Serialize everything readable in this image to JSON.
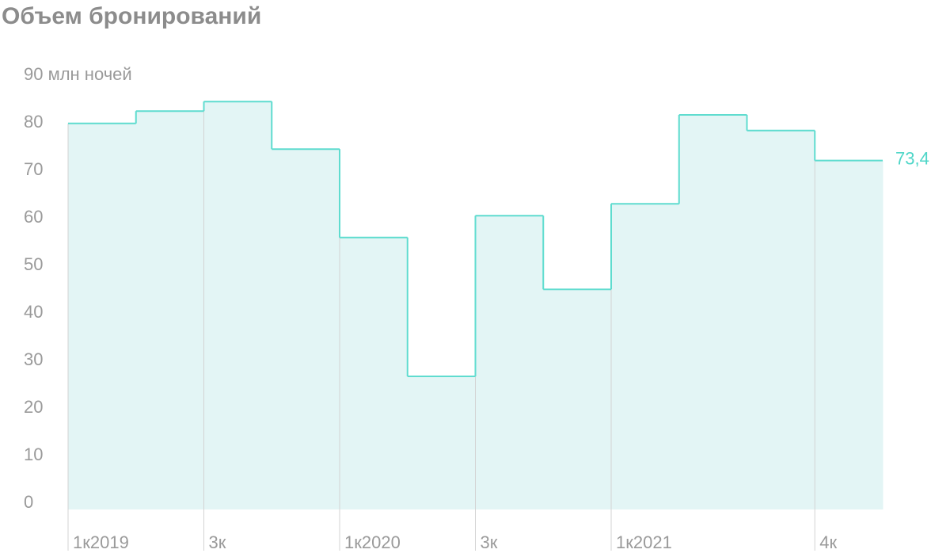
{
  "chart_data": {
    "type": "step",
    "title": "Объем бронирований",
    "categories": [
      "1к2019",
      null,
      "3к",
      null,
      "1к2020",
      null,
      "3к",
      null,
      "1к2021",
      null,
      null,
      "4к"
    ],
    "values": [
      81.2,
      83.8,
      85.8,
      75.8,
      57.2,
      28,
      61.8,
      46.3,
      64.3,
      83,
      79.7,
      73.4
    ],
    "value_labels": [
      null,
      null,
      null,
      null,
      null,
      null,
      null,
      null,
      null,
      null,
      null,
      "73,4"
    ],
    "color": "#5fdccf",
    "fill_color": "#e3f5f5",
    "ylim": [
      0,
      90
    ],
    "yticks": [
      0,
      10,
      20,
      30,
      40,
      50,
      60,
      70,
      80,
      {
        "value": 90,
        "label": "90 млн ночей"
      }
    ]
  }
}
